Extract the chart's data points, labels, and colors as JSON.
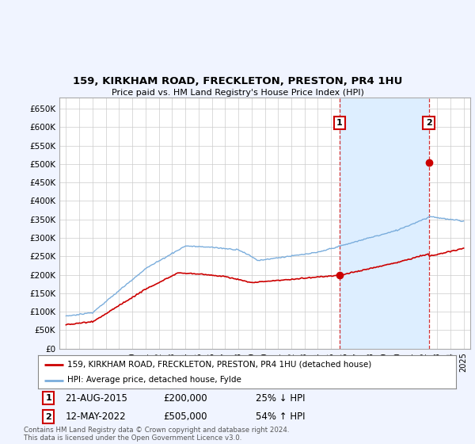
{
  "title": "159, KIRKHAM ROAD, FRECKLETON, PRESTON, PR4 1HU",
  "subtitle": "Price paid vs. HM Land Registry's House Price Index (HPI)",
  "ylim": [
    0,
    680000
  ],
  "yticks": [
    0,
    50000,
    100000,
    150000,
    200000,
    250000,
    300000,
    350000,
    400000,
    450000,
    500000,
    550000,
    600000,
    650000
  ],
  "ytick_labels": [
    "£0",
    "£50K",
    "£100K",
    "£150K",
    "£200K",
    "£250K",
    "£300K",
    "£350K",
    "£400K",
    "£450K",
    "£500K",
    "£550K",
    "£600K",
    "£650K"
  ],
  "hpi_color": "#7aaddc",
  "price_color": "#cc0000",
  "shade_color": "#ddeeff",
  "purchase1_date": 2015.63,
  "purchase1_price": 200000,
  "purchase2_date": 2022.37,
  "purchase2_price": 505000,
  "legend_house": "159, KIRKHAM ROAD, FRECKLETON, PRESTON, PR4 1HU (detached house)",
  "legend_hpi": "HPI: Average price, detached house, Fylde",
  "note1_date": "21-AUG-2015",
  "note1_price": "£200,000",
  "note1_pct": "25% ↓ HPI",
  "note2_date": "12-MAY-2022",
  "note2_price": "£505,000",
  "note2_pct": "54% ↑ HPI",
  "footer": "Contains HM Land Registry data © Crown copyright and database right 2024.\nThis data is licensed under the Open Government Licence v3.0.",
  "bg_color": "#f0f4ff",
  "plot_bg": "#ffffff",
  "grid_color": "#cccccc"
}
